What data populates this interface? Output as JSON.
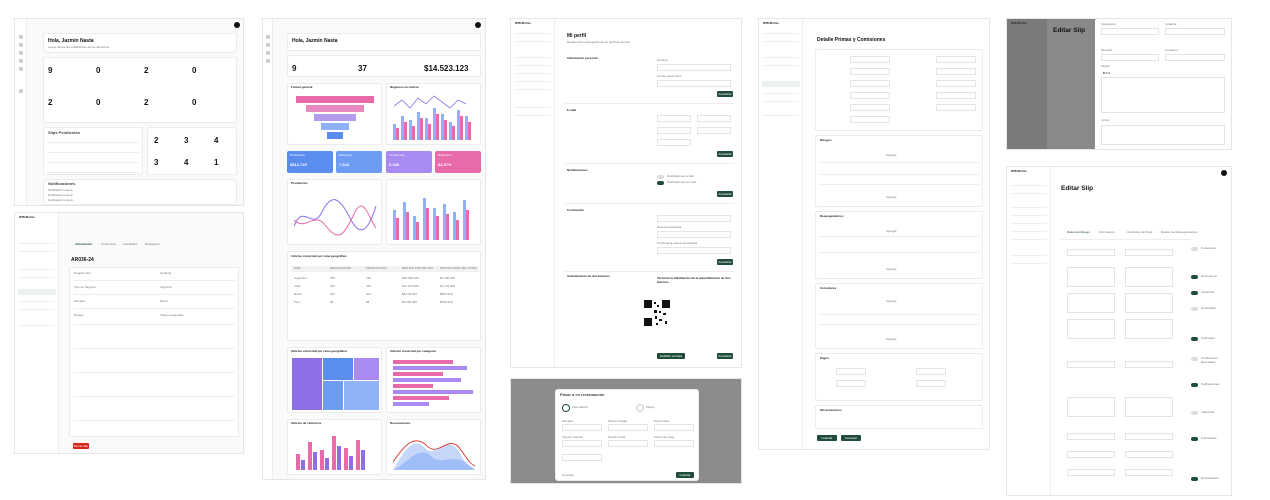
{
  "brand": "WITHForks",
  "colors": {
    "accent": "#1f4d3a",
    "blue": "#5b8def",
    "pink": "#e86aa8",
    "purple": "#8e6fe8",
    "red": "#d9261c"
  },
  "s1": {
    "greeting": "Hola, Jazmín Nasta",
    "subtitle": "Luego tienes las estadísticas de tus siniestros",
    "stats": [
      "9",
      "0",
      "2",
      "0",
      "2",
      "0",
      "2",
      "0"
    ],
    "pending_title": "Slips Pendientes",
    "notifications_title": "Notificaciones",
    "notifications": [
      "Notificación nueva",
      "Notificación nueva",
      "Notificación nueva"
    ]
  },
  "s2": {
    "greeting": "Hola, Jazmín Nasta",
    "stat_values": [
      "9",
      "37",
      "$14.523.123"
    ],
    "funnel_title": "Funnel general",
    "bar_title": "Negocios en cartera",
    "kpis": [
      "Producción",
      "Esfuerzos",
      "Comisiones",
      "Retención"
    ],
    "kpi_values": [
      "$814.725",
      "7.644",
      "5.248",
      "84.37%"
    ],
    "production_title": "Producción",
    "table_title": "Informe comercial por zona geográfica",
    "table_cols": [
      "PAÍS",
      "NEGOCIACIÓN",
      "PRODUCCIÓN",
      "RENTAS PROYECTAS",
      "PROYECCIÓN DEL TOTAL"
    ],
    "table_rows": [
      [
        "Argentina",
        "784",
        "784",
        "$26.456.000",
        "$2.456.000"
      ],
      [
        "Chile",
        "432",
        "432",
        "$12.123.000",
        "$1.123.000"
      ],
      [
        "Brasil",
        "201",
        "201",
        "$8.123.000",
        "$823.000"
      ],
      [
        "Perú",
        "98",
        "98",
        "$3.456.000",
        "$456.000"
      ]
    ],
    "treemap_title": "Informe comercial por ramo geográfica",
    "hbar_title": "Informe comercial por categoría",
    "siniestros_title": "Informe de siniestros",
    "renov_title": "Renovaciones"
  },
  "s3": {
    "title": "Mi perfil",
    "subtitle": "Desde aquí podrá gestionar su perfil de usuario",
    "sections": [
      "Información personal",
      "E-mail",
      "Notificaciones",
      "Contraseña",
      "Autenticación de dos factores"
    ],
    "fields": [
      "Nombre",
      "Correo electrónico",
      "Email",
      "Contraseña",
      "Ubicación",
      "Nueva contraseña",
      "Confirma la nueva contraseña"
    ],
    "save": "Actualizar",
    "twofa_title": "Terminar la habilitación de la autentificación de dos factores",
    "twofa_btn": "Habilitar entrada",
    "notif_opts": [
      "Notificaciones email",
      "Notificaciones en web"
    ]
  },
  "s4": {
    "title": "Detalle Primas y Comisiones",
    "sections": [
      "Riesgos",
      "Reaseguradores",
      "Corredores",
      "Pagos",
      "Observaciones"
    ],
    "add_btn": "Agregar",
    "save_btn": "Guardar",
    "cancel_btn": "Cancelar"
  },
  "s5": {
    "title": "AR036-24",
    "tabs": [
      "Información",
      "Coberturas",
      "Facultativo",
      "Reaseguro"
    ],
    "fields": [
      "Negocio Ref.",
      "Cedente",
      "Tipo de Negocio",
      "Vigencia",
      "Moneda",
      "Ramo",
      "Riesgo",
      "Objeto asegurado"
    ],
    "delete_btn": "Borrar Slip"
  },
  "s6": {
    "title": "Editar Slip",
    "fields": [
      "Asegurado",
      "Cedente",
      "Moneda",
      "Comisión",
      "Límite",
      "Objeto"
    ],
    "rich_toolbar": "B I U",
    "fields2": [
      "Fecha de inicio",
      "Tipo de Cambio",
      "Estado"
    ]
  },
  "s7": {
    "title": "Editar Slip",
    "steps": [
      "Datos del Riesgo",
      "Información",
      "Condición de Pago",
      "Detalle de Reaseguradores",
      "Datos Finales"
    ],
    "toggles": [
      "Coberturas",
      "Exclusiones",
      "Garantías",
      "Deducibles",
      "Sublímites",
      "Condiciones Especiales",
      "Notificaciones",
      "Cláusulas",
      "Franquicias",
      "Reinstalación"
    ]
  },
  "s8": {
    "title": "Pasar a en reclamación",
    "step1": "Información",
    "step2": "Pagos",
    "fields": [
      "Moneda",
      "Prima a Pagar",
      "Prima Neta",
      "Tipo de Cambio",
      "Fecha Cuota",
      "Forma de pago"
    ],
    "cancel": "Cancelar",
    "confirm": "Guardar"
  }
}
